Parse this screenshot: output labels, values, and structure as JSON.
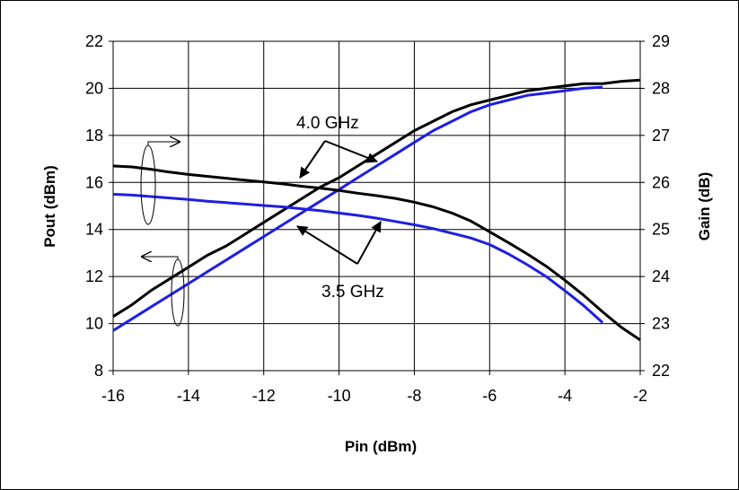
{
  "chart_data": {
    "type": "line",
    "title": "",
    "xlabel": "Pin (dBm)",
    "ylabel_left": "Pout (dBm)",
    "ylabel_right": "Gain (dB)",
    "xlim": [
      -16,
      -2
    ],
    "ylim_left": [
      8,
      22
    ],
    "ylim_right": [
      22,
      29
    ],
    "xticks": [
      "-16",
      "-14",
      "-12",
      "-10",
      "-8",
      "-6",
      "-4",
      "-2"
    ],
    "yticks_left": [
      "8",
      "10",
      "12",
      "14",
      "16",
      "18",
      "20",
      "22"
    ],
    "yticks_right": [
      "22",
      "23",
      "24",
      "25",
      "26",
      "27",
      "28",
      "29"
    ],
    "grid": true,
    "annotations": [
      "4.0 GHz",
      "3.5 GHz"
    ],
    "colors": {
      "freq_4_0": "#000000",
      "freq_3_5": "#1f1fe0",
      "grid": "#000000"
    },
    "series": [
      {
        "axis": "left",
        "quantity": "Pout",
        "freq": "4.0 GHz",
        "x": [
          -16,
          -15.5,
          -15,
          -14.5,
          -14,
          -13.5,
          -13,
          -12.5,
          -12,
          -11.5,
          -11,
          -10.5,
          -10,
          -9.5,
          -9,
          -8.5,
          -8,
          -7.5,
          -7,
          -6.5,
          -6,
          -5.5,
          -5,
          -4.5,
          -4,
          -3.5,
          -3,
          -2.5,
          -2
        ],
        "values": [
          10.3,
          10.8,
          11.4,
          11.9,
          12.4,
          12.9,
          13.3,
          13.8,
          14.3,
          14.8,
          15.3,
          15.8,
          16.2,
          16.7,
          17.2,
          17.7,
          18.2,
          18.6,
          19.0,
          19.3,
          19.5,
          19.7,
          19.9,
          20.0,
          20.1,
          20.2,
          20.2,
          20.3,
          20.35
        ]
      },
      {
        "axis": "left",
        "quantity": "Pout",
        "freq": "3.5 GHz",
        "x": [
          -16,
          -15.5,
          -15,
          -14.5,
          -14,
          -13.5,
          -13,
          -12.5,
          -12,
          -11.5,
          -11,
          -10.5,
          -10,
          -9.5,
          -9,
          -8.5,
          -8,
          -7.5,
          -7,
          -6.5,
          -6,
          -5.5,
          -5,
          -4.5,
          -4,
          -3.5,
          -3
        ],
        "values": [
          9.7,
          10.2,
          10.7,
          11.2,
          11.7,
          12.2,
          12.7,
          13.2,
          13.7,
          14.2,
          14.7,
          15.2,
          15.7,
          16.2,
          16.7,
          17.2,
          17.7,
          18.2,
          18.6,
          19.0,
          19.3,
          19.5,
          19.7,
          19.8,
          19.9,
          20.0,
          20.05
        ]
      },
      {
        "axis": "right",
        "quantity": "Gain",
        "freq": "4.0 GHz",
        "x": [
          -16,
          -15.5,
          -15,
          -14.5,
          -14,
          -13.5,
          -13,
          -12.5,
          -12,
          -11.5,
          -11,
          -10.5,
          -10,
          -9.5,
          -9,
          -8.5,
          -8,
          -7.5,
          -7,
          -6.5,
          -6,
          -5.5,
          -5,
          -4.5,
          -4,
          -3.5,
          -3,
          -2.5,
          -2
        ],
        "values": [
          26.35,
          26.33,
          26.28,
          26.22,
          26.17,
          26.13,
          26.09,
          26.05,
          26.01,
          25.97,
          25.92,
          25.88,
          25.83,
          25.77,
          25.72,
          25.66,
          25.58,
          25.48,
          25.35,
          25.18,
          24.95,
          24.72,
          24.48,
          24.22,
          23.92,
          23.6,
          23.25,
          22.92,
          22.65
        ]
      },
      {
        "axis": "right",
        "quantity": "Gain",
        "freq": "3.5 GHz",
        "x": [
          -16,
          -15.5,
          -15,
          -14.5,
          -14,
          -13.5,
          -13,
          -12.5,
          -12,
          -11.5,
          -11,
          -10.5,
          -10,
          -9.5,
          -9,
          -8.5,
          -8,
          -7.5,
          -7,
          -6.5,
          -6,
          -5.5,
          -5,
          -4.5,
          -4,
          -3.5,
          -3
        ],
        "values": [
          25.75,
          25.73,
          25.7,
          25.67,
          25.64,
          25.6,
          25.57,
          25.54,
          25.51,
          25.48,
          25.44,
          25.4,
          25.35,
          25.3,
          25.24,
          25.17,
          25.1,
          25.02,
          24.92,
          24.82,
          24.68,
          24.48,
          24.25,
          24.0,
          23.7,
          23.38,
          23.02
        ]
      }
    ]
  }
}
